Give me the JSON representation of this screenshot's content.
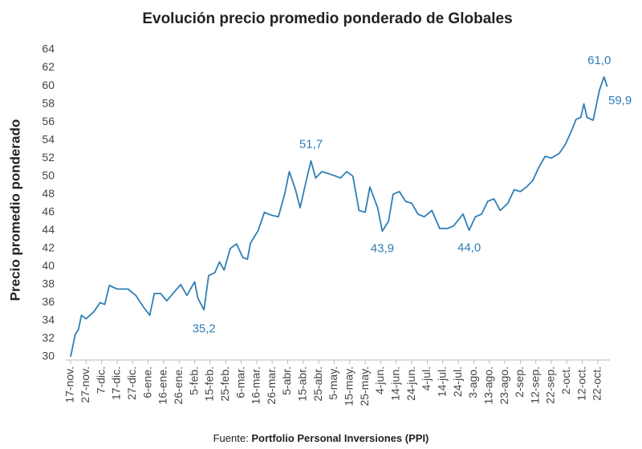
{
  "chart_data": {
    "type": "line",
    "title": "Evolución precio promedio ponderado de Globales",
    "y_label": "Precio promedio ponderado",
    "source": {
      "prefix": "Fuente:",
      "name": "Portfolio Personal Inversiones (PPI)"
    },
    "color": "#2f7fb5",
    "grid": false,
    "x": [
      0,
      3,
      5,
      7,
      10,
      15,
      19,
      22,
      25,
      30,
      37,
      42,
      47,
      51,
      54,
      58,
      62,
      66,
      71,
      75,
      80,
      82,
      86,
      89,
      93,
      96,
      99,
      103,
      107,
      111,
      114,
      116,
      121,
      125,
      129,
      134,
      138,
      141,
      145,
      148,
      151,
      155,
      158,
      162,
      166,
      171,
      174,
      178,
      182,
      186,
      190,
      193,
      198,
      201,
      205,
      208,
      212,
      216,
      220,
      224,
      228,
      233,
      238,
      243,
      247,
      253,
      257,
      261,
      265,
      269,
      273,
      277,
      282,
      286,
      290,
      294,
      298,
      302,
      306,
      310,
      315,
      319,
      323,
      326,
      329,
      331,
      333,
      337,
      341,
      344,
      346
    ],
    "series": [
      {
        "name": "Precio promedio ponderado",
        "values": [
          30.0,
          32.5,
          33.0,
          34.6,
          34.2,
          35.0,
          36.0,
          35.8,
          37.9,
          37.5,
          37.5,
          36.8,
          35.5,
          34.6,
          37.0,
          37.0,
          36.2,
          37.0,
          38.0,
          36.8,
          38.3,
          36.5,
          35.2,
          39.0,
          39.3,
          40.5,
          39.6,
          42.0,
          42.5,
          41.0,
          40.8,
          42.6,
          44.0,
          46.0,
          45.7,
          45.5,
          48.0,
          50.5,
          48.5,
          46.5,
          48.8,
          51.7,
          49.8,
          50.5,
          50.3,
          50.0,
          49.8,
          50.5,
          50.0,
          46.2,
          46.0,
          48.8,
          46.5,
          43.9,
          45.0,
          48.0,
          48.3,
          47.2,
          47.0,
          45.8,
          45.5,
          46.2,
          44.2,
          44.2,
          44.5,
          45.8,
          44.0,
          45.5,
          45.8,
          47.2,
          47.5,
          46.2,
          47.0,
          48.5,
          48.3,
          48.8,
          49.5,
          51.0,
          52.2,
          52.0,
          52.5,
          53.5,
          55.0,
          56.3,
          56.5,
          58.0,
          56.5,
          56.2,
          59.5,
          61.0,
          59.9
        ]
      }
    ],
    "annotations": [
      {
        "x": 86,
        "value": 35.2,
        "label": "35,2"
      },
      {
        "x": 155,
        "value": 51.7,
        "label": "51,7"
      },
      {
        "x": 201,
        "value": 43.9,
        "label": "43,9"
      },
      {
        "x": 257,
        "value": 44.0,
        "label": "44,0"
      },
      {
        "x": 344,
        "value": 61.0,
        "label": "61,0"
      },
      {
        "x": 346,
        "value": 59.9,
        "label": "59,9"
      }
    ],
    "xlim": [
      0,
      340
    ],
    "xticks": [
      {
        "value": 0,
        "label": "17-nov."
      },
      {
        "value": 10,
        "label": "27-nov."
      },
      {
        "value": 20,
        "label": "7-dic."
      },
      {
        "value": 30,
        "label": "17-dic."
      },
      {
        "value": 40,
        "label": "27-dic."
      },
      {
        "value": 50,
        "label": "6-ene."
      },
      {
        "value": 60,
        "label": "16-ene."
      },
      {
        "value": 70,
        "label": "26-ene."
      },
      {
        "value": 80,
        "label": "5-feb."
      },
      {
        "value": 90,
        "label": "15-feb."
      },
      {
        "value": 100,
        "label": "25-feb."
      },
      {
        "value": 110,
        "label": "6-mar."
      },
      {
        "value": 120,
        "label": "16-mar."
      },
      {
        "value": 130,
        "label": "26-mar."
      },
      {
        "value": 140,
        "label": "5-abr."
      },
      {
        "value": 150,
        "label": "15-abr."
      },
      {
        "value": 160,
        "label": "25-abr."
      },
      {
        "value": 170,
        "label": "5-may."
      },
      {
        "value": 180,
        "label": "15-may."
      },
      {
        "value": 190,
        "label": "25-may."
      },
      {
        "value": 200,
        "label": "4-jun."
      },
      {
        "value": 210,
        "label": "14-jun."
      },
      {
        "value": 220,
        "label": "24-jun."
      },
      {
        "value": 230,
        "label": "4-jul."
      },
      {
        "value": 240,
        "label": "14-jul."
      },
      {
        "value": 250,
        "label": "24-jul."
      },
      {
        "value": 260,
        "label": "3-ago."
      },
      {
        "value": 270,
        "label": "13-ago."
      },
      {
        "value": 280,
        "label": "23-ago."
      },
      {
        "value": 290,
        "label": "2-sep."
      },
      {
        "value": 300,
        "label": "12-sep."
      },
      {
        "value": 310,
        "label": "22-sep."
      },
      {
        "value": 320,
        "label": "2-oct."
      },
      {
        "value": 330,
        "label": "12-oct."
      },
      {
        "value": 340,
        "label": "22-oct."
      }
    ],
    "ylim": [
      30,
      64
    ],
    "yticks": [
      30,
      32,
      34,
      36,
      38,
      40,
      42,
      44,
      46,
      48,
      50,
      52,
      54,
      56,
      58,
      60,
      62,
      64
    ]
  }
}
